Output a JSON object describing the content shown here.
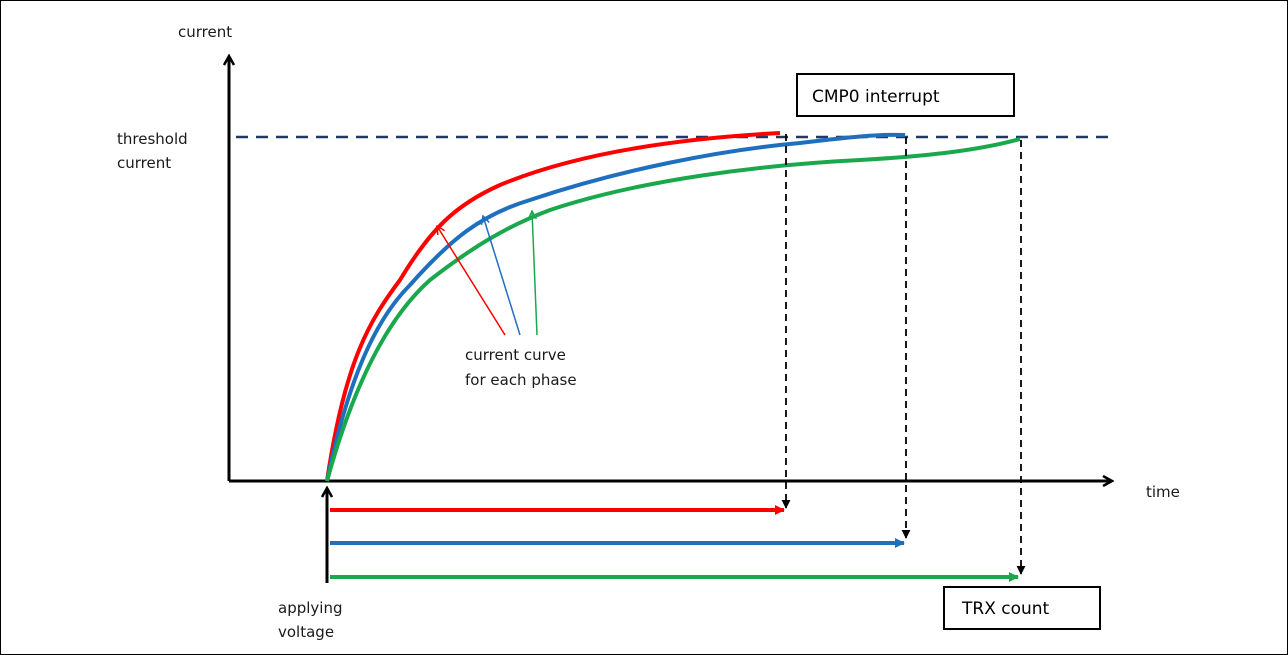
{
  "axes": {
    "y_label": "current",
    "x_label": "time",
    "threshold_label_line1": "threshold",
    "threshold_label_line2": "current"
  },
  "annotations": {
    "curve_label_line1": "current curve",
    "curve_label_line2": "for each phase",
    "voltage_label_line1": "applying",
    "voltage_label_line2": "voltage",
    "cmp_box": "CMP0 interrupt",
    "trx_box": "TRX count"
  },
  "colors": {
    "phase_red": "#ff0000",
    "phase_blue": "#1f6fbf",
    "phase_green": "#1aa84c",
    "threshold": "#1f3864",
    "axis": "#000000"
  }
}
